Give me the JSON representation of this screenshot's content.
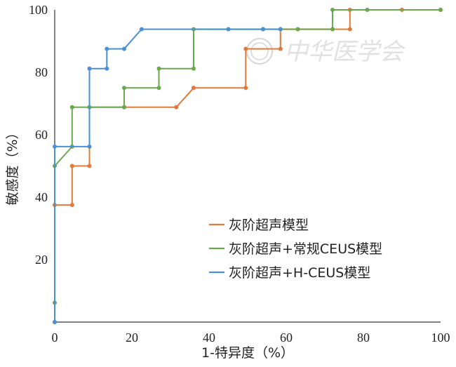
{
  "chart_data": {
    "type": "line",
    "title": "",
    "xlabel": "1-特异度（%）",
    "ylabel": "敏感度（%）",
    "xlim": [
      0,
      100
    ],
    "ylim": [
      0,
      100
    ],
    "x_ticks": [
      "0",
      "20",
      "40",
      "60",
      "80",
      "100"
    ],
    "y_ticks": [
      "20",
      "40",
      "60",
      "80",
      "100"
    ],
    "grid": false,
    "legend_position": "bottom-center",
    "watermark": "中华医学会",
    "series": [
      {
        "name": "灰阶超声模型",
        "color": "#e07b39",
        "x": [
          0,
          0,
          4.5,
          4.5,
          9,
          9,
          18,
          18,
          31.5,
          36,
          36,
          49.5,
          49.5,
          58.5,
          58.5,
          63,
          72,
          76.5,
          76.5,
          90,
          100
        ],
        "y": [
          0,
          37.5,
          37.5,
          50,
          50,
          68.8,
          68.8,
          68.8,
          68.8,
          75,
          75,
          75,
          87.5,
          87.5,
          93.8,
          93.8,
          93.8,
          93.8,
          100,
          100,
          100
        ]
      },
      {
        "name": "灰阶超声+常规CEUS模型",
        "color": "#6aa84f",
        "x": [
          0,
          0,
          0,
          4.5,
          4.5,
          9,
          18,
          18,
          27,
          27,
          36,
          36,
          45,
          54,
          58.5,
          63,
          72,
          72,
          81,
          100
        ],
        "y": [
          0,
          6.2,
          50,
          56.2,
          68.8,
          68.8,
          68.8,
          75,
          75,
          81.2,
          81.2,
          93.8,
          93.8,
          93.8,
          93.8,
          93.8,
          93.8,
          100,
          100,
          100
        ]
      },
      {
        "name": "灰阶超声+H-CEUS模型",
        "color": "#4a90d9",
        "x": [
          0,
          0,
          9,
          9,
          13.5,
          13.5,
          18,
          22.5,
          45,
          54,
          58.5
        ],
        "y": [
          0,
          56.2,
          56.2,
          81.2,
          81.2,
          87.5,
          87.5,
          93.8,
          93.8,
          93.8,
          93.8
        ]
      }
    ]
  }
}
